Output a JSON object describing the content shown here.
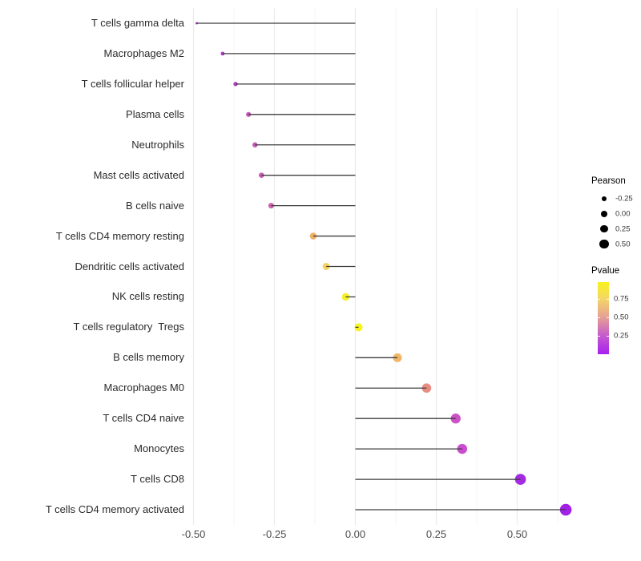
{
  "chart_data": {
    "type": "bar",
    "variant": "horizontal_lollipop",
    "title": "",
    "xlabel": "",
    "ylabel": "",
    "grid": "vertical_only",
    "legend_position": "right",
    "x_axis": {
      "range": [
        -0.51,
        0.68
      ],
      "tick_values": [
        -0.5,
        -0.25,
        0,
        0.25,
        0.5
      ],
      "tick_labels": [
        "-0.50",
        "-0.25",
        "0.00",
        "0.25",
        "0.50"
      ],
      "minor_tick_values": [
        -0.375,
        -0.125,
        0.125,
        0.375,
        0.625
      ]
    },
    "baseline": 0,
    "categories": [
      "T cells gamma delta",
      "Macrophages M2",
      "T cells follicular helper",
      "Plasma cells",
      "Neutrophils",
      "Mast cells activated",
      "B cells naive",
      "T cells CD4 memory resting",
      "Dendritic cells activated",
      "NK cells resting",
      "T cells regulatory  Tregs",
      "B cells memory",
      "Macrophages M0",
      "T cells CD4 naive",
      "Monocytes",
      "T cells CD8",
      "T cells CD4 memory activated"
    ],
    "series": [
      {
        "name": "Pearson",
        "values": [
          -0.49,
          -0.41,
          -0.37,
          -0.33,
          -0.31,
          -0.29,
          -0.26,
          -0.13,
          -0.09,
          -0.03,
          0.01,
          0.13,
          0.22,
          0.31,
          0.33,
          0.51,
          0.65
        ]
      }
    ],
    "point_colors": [
      "#A238C4",
      "#AB3FC6",
      "#AF44C6",
      "#C156B9",
      "#C359B5",
      "#C75DB2",
      "#CC62AC",
      "#EDB168",
      "#F2D25C",
      "#F4EF2C",
      "#F8F318",
      "#F0B666",
      "#E78D82",
      "#CC51C5",
      "#C94DCE",
      "#A52BE2",
      "#A121E8"
    ],
    "legends": {
      "size": {
        "title": "Pearson",
        "entries": [
          "-0.25",
          "0.00",
          "0.25",
          "0.50"
        ]
      },
      "color": {
        "title": "Pvalue",
        "tick_labels": [
          "0.75",
          "0.50",
          "0.25"
        ],
        "gradient_bottom": "#A81FF0",
        "gradient_mid": "#E6A293",
        "gradient_top": "#F8F21C"
      }
    }
  },
  "colors": {
    "background": "#FFFFFF",
    "stem": "#3D3D3D",
    "grid_major": "#EBEBEB",
    "grid_minor": "#F4F4F4",
    "axis_text": "#4A4A4A",
    "category_text": "#2B2B2B",
    "legend_dot": "#000000"
  }
}
